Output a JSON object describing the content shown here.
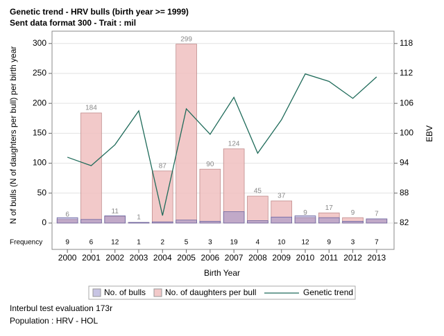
{
  "chart_data": {
    "type": "bar",
    "title": "Genetic trend - HRV bulls (birth year >= 1999)",
    "subtitle": "Sent data format 300 - Trait : mil",
    "x_label": "Birth Year",
    "y_label": "N of bulls (N of daughters per bull) per birth year",
    "y2_label": "EBV",
    "frequency_label": "Frequency",
    "categories": [
      "2000",
      "2001",
      "2002",
      "2003",
      "2004",
      "2005",
      "2006",
      "2007",
      "2008",
      "2009",
      "2010",
      "2011",
      "2012",
      "2013"
    ],
    "series": [
      {
        "name": "No. of bulls",
        "color": "#8f89c8",
        "values": [
          9,
          6,
          12,
          1,
          2,
          5,
          3,
          19,
          4,
          10,
          12,
          9,
          3,
          7
        ]
      },
      {
        "name": "No. of daughters per bull",
        "color": "#f0c0c0",
        "values": [
          6,
          184,
          11,
          1,
          87,
          299,
          90,
          124,
          45,
          37,
          9,
          17,
          9,
          7
        ]
      },
      {
        "name": "Genetic trend",
        "color": "#1f6b5a",
        "type": "line",
        "axis": "y2",
        "values": [
          95.2,
          93.5,
          97.7,
          104.5,
          83.5,
          104.9,
          99.8,
          107.2,
          96.0,
          102.7,
          111.9,
          110.4,
          107.0,
          111.3
        ]
      }
    ],
    "ylim": [
      -10,
      320
    ],
    "yticks": [
      0,
      50,
      100,
      150,
      200,
      250,
      300
    ],
    "y2lim": [
      80.8,
      120.4
    ],
    "y2ticks": [
      82,
      88,
      94,
      100,
      106,
      112,
      118
    ],
    "grid": true
  },
  "notes": [
    "Interbul test evaluation 173r",
    "Population : HRV - HOL"
  ]
}
